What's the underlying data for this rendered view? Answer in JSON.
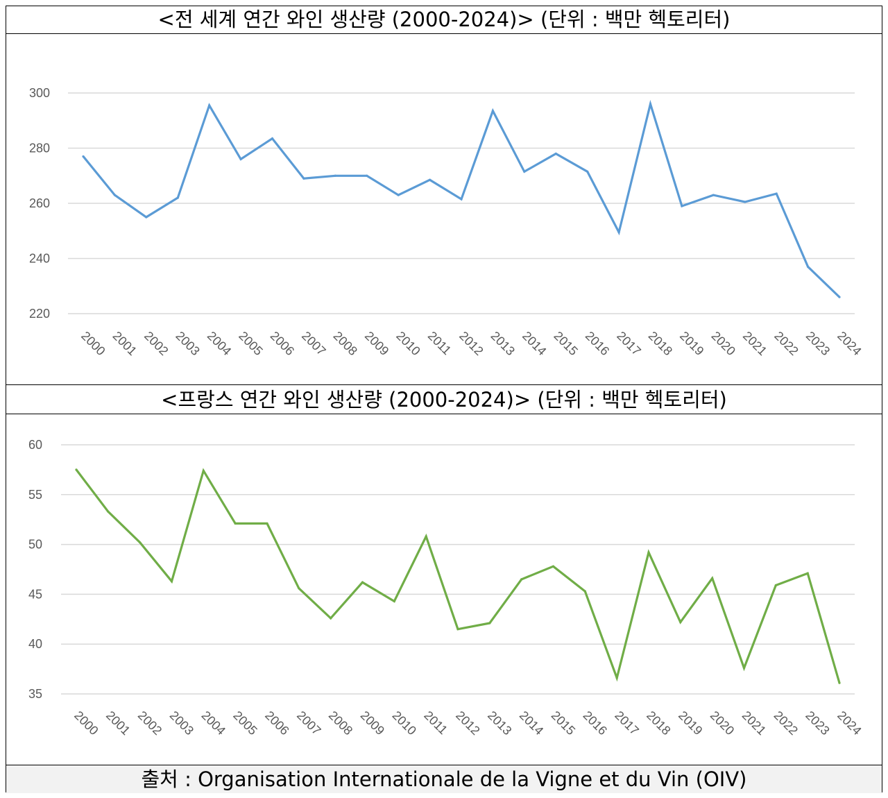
{
  "figure": {
    "title1": "<전 세계 연간 와인 생산량 (2000-2024)> (단위 : 백만 헥토리터)",
    "title2": "<프랑스 연간 와인 생산량 (2000-2024)> (단위 : 백만 헥토리터)",
    "source": "출처 : Organisation Internationale de la Vigne et du Vin (OIV)"
  },
  "chart_data": [
    {
      "type": "line",
      "title": "<전 세계 연간 와인 생산량 (2000-2024)> (단위 : 백만 헥토리터)",
      "categories": [
        "2000",
        "2001",
        "2002",
        "2003",
        "2004",
        "2005",
        "2006",
        "2007",
        "2008",
        "2009",
        "2010",
        "2011",
        "2012",
        "2013",
        "2014",
        "2015",
        "2016",
        "2017",
        "2018",
        "2019",
        "2020",
        "2021",
        "2022",
        "2023",
        "2024"
      ],
      "series": [
        {
          "values": [
            277,
            263,
            255,
            262,
            295.5,
            276,
            283.5,
            269,
            270,
            270,
            263,
            268.5,
            261.5,
            293.5,
            271.5,
            278,
            271.5,
            249.5,
            296,
            259,
            263,
            260.5,
            263.5,
            237,
            226
          ],
          "color": "#5b9bd5"
        }
      ],
      "yticks": [
        220,
        240,
        260,
        280,
        300
      ],
      "ylim": [
        220,
        300
      ],
      "grid": true,
      "legend": "none"
    },
    {
      "type": "line",
      "title": "<프랑스 연간 와인 생산량 (2000-2024)> (단위 : 백만 헥토리터)",
      "categories": [
        "2000",
        "2001",
        "2002",
        "2003",
        "2004",
        "2005",
        "2006",
        "2007",
        "2008",
        "2009",
        "2010",
        "2011",
        "2012",
        "2013",
        "2014",
        "2015",
        "2016",
        "2017",
        "2018",
        "2019",
        "2020",
        "2021",
        "2022",
        "2023",
        "2024"
      ],
      "series": [
        {
          "values": [
            57.5,
            53.3,
            50.2,
            46.3,
            57.4,
            52.1,
            52.1,
            45.6,
            42.6,
            46.2,
            44.3,
            50.8,
            41.5,
            42.1,
            46.5,
            47.8,
            45.3,
            36.6,
            49.2,
            42.2,
            46.6,
            37.6,
            45.9,
            47.1,
            36.1
          ],
          "color": "#70ad47"
        }
      ],
      "yticks": [
        35,
        40,
        45,
        50,
        55,
        60
      ],
      "ylim": [
        35,
        60
      ],
      "grid": true,
      "legend": "none"
    }
  ]
}
